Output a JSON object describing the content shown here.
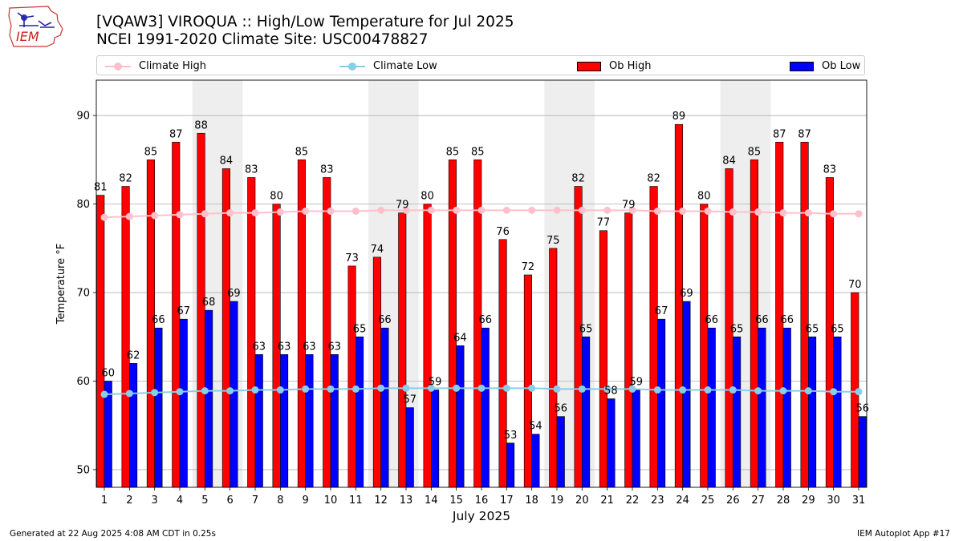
{
  "header": {
    "logo_text": "IEM",
    "title_line1": "[VQAW3] VIROQUA :: High/Low Temperature for Jul 2025",
    "title_line2": "NCEI 1991-2020 Climate Site: USC00478827"
  },
  "legend": {
    "climate_high": "Climate High",
    "climate_low": "Climate Low",
    "ob_high": "Ob High",
    "ob_low": "Ob Low"
  },
  "footer": {
    "generated": "Generated at 22 Aug 2025 4:08 AM CDT in 0.25s",
    "app": "IEM Autoplot App #17"
  },
  "colors": {
    "ob_high": "#ff0000",
    "ob_low": "#0000ff",
    "climate_high": "#ffc0cb",
    "climate_low": "#87ceeb",
    "weekend_shade": "#eeeeee",
    "grid": "#b0b0b0"
  },
  "chart_data": {
    "type": "bar",
    "xlabel": "July 2025",
    "ylabel": "Temperature °F",
    "ylim": [
      48,
      94
    ],
    "yticks": [
      50,
      60,
      70,
      80,
      90
    ],
    "grid": "horizontal",
    "legend_position": "top",
    "categories": [
      "1",
      "2",
      "3",
      "4",
      "5",
      "6",
      "7",
      "8",
      "9",
      "10",
      "11",
      "12",
      "13",
      "14",
      "15",
      "16",
      "17",
      "18",
      "19",
      "20",
      "21",
      "22",
      "23",
      "24",
      "25",
      "26",
      "27",
      "28",
      "29",
      "30",
      "31"
    ],
    "weekend_spans": [
      [
        5,
        6
      ],
      [
        12,
        13
      ],
      [
        19,
        20
      ],
      [
        26,
        27
      ]
    ],
    "series": [
      {
        "name": "Ob High",
        "kind": "bar",
        "values": [
          81,
          82,
          85,
          87,
          88,
          84,
          83,
          80,
          85,
          83,
          73,
          74,
          79,
          80,
          85,
          85,
          76,
          72,
          75,
          82,
          77,
          79,
          82,
          89,
          80,
          84,
          85,
          87,
          87,
          83,
          70
        ]
      },
      {
        "name": "Ob Low",
        "kind": "bar",
        "values": [
          60,
          62,
          66,
          67,
          68,
          69,
          63,
          63,
          63,
          63,
          65,
          66,
          57,
          59,
          64,
          66,
          53,
          54,
          56,
          65,
          58,
          59,
          67,
          69,
          66,
          65,
          66,
          66,
          65,
          65,
          56
        ]
      },
      {
        "name": "Climate High",
        "kind": "line",
        "values": [
          78.5,
          78.6,
          78.7,
          78.8,
          78.9,
          79.0,
          79.0,
          79.1,
          79.2,
          79.2,
          79.2,
          79.3,
          79.3,
          79.3,
          79.3,
          79.3,
          79.3,
          79.3,
          79.3,
          79.3,
          79.3,
          79.3,
          79.2,
          79.2,
          79.2,
          79.1,
          79.1,
          79.0,
          79.0,
          78.9,
          78.9
        ]
      },
      {
        "name": "Climate Low",
        "kind": "line",
        "values": [
          58.5,
          58.6,
          58.7,
          58.8,
          58.9,
          58.9,
          59.0,
          59.0,
          59.1,
          59.1,
          59.1,
          59.2,
          59.2,
          59.2,
          59.2,
          59.2,
          59.2,
          59.2,
          59.1,
          59.1,
          59.1,
          59.1,
          59.0,
          59.0,
          59.0,
          59.0,
          58.9,
          58.9,
          58.9,
          58.8,
          58.8
        ]
      }
    ]
  }
}
